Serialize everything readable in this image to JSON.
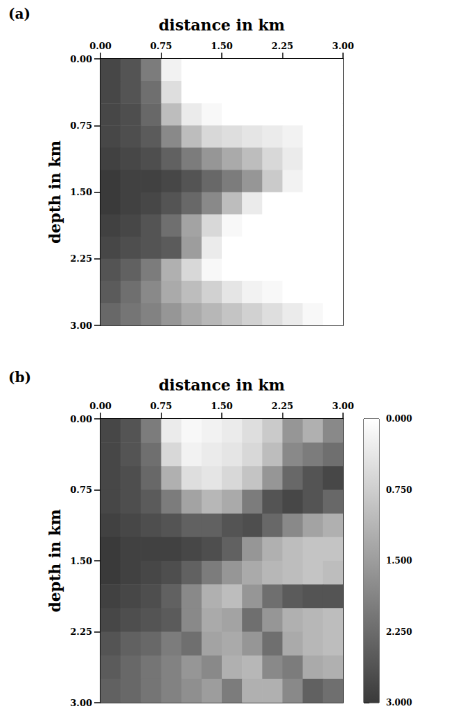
{
  "chart_data": [
    {
      "type": "heatmap",
      "label": "(a)",
      "x_label": "distance in km",
      "y_label": "depth in km",
      "xlim": [
        0,
        3
      ],
      "ylim": [
        0,
        3
      ],
      "xticks": [
        {
          "value": 0,
          "label": "0.00"
        },
        {
          "value": 0.75,
          "label": "0.75"
        },
        {
          "value": 1.5,
          "label": "1.50"
        },
        {
          "value": 2.25,
          "label": "2.25"
        },
        {
          "value": 3,
          "label": "3.00"
        }
      ],
      "yticks": [
        {
          "value": 0,
          "label": "0.00"
        },
        {
          "value": 0.75,
          "label": "0.75"
        },
        {
          "value": 1.5,
          "label": "1.50"
        },
        {
          "value": 2.25,
          "label": "2.25"
        },
        {
          "value": 3,
          "label": "3.00"
        }
      ],
      "z": [
        [
          2.8,
          2.6,
          2.0,
          0.2,
          0,
          0,
          0,
          0,
          0,
          0,
          0,
          0
        ],
        [
          2.8,
          2.6,
          2.2,
          0.5,
          0,
          0,
          0,
          0,
          0,
          0,
          0,
          0
        ],
        [
          2.8,
          2.7,
          2.3,
          1.0,
          0.3,
          0.1,
          0,
          0,
          0,
          0,
          0,
          0
        ],
        [
          2.8,
          2.7,
          2.5,
          1.8,
          1.0,
          0.6,
          0.5,
          0.4,
          0.3,
          0.2,
          0,
          0
        ],
        [
          2.9,
          2.8,
          2.7,
          2.4,
          2.0,
          1.6,
          1.3,
          1.0,
          0.6,
          0.3,
          0,
          0
        ],
        [
          3.0,
          2.9,
          2.9,
          2.8,
          2.6,
          2.3,
          2.0,
          1.6,
          0.8,
          0.2,
          0,
          0
        ],
        [
          3.0,
          2.9,
          2.8,
          2.6,
          2.3,
          1.8,
          1.0,
          0.3,
          0,
          0,
          0,
          0
        ],
        [
          2.9,
          2.8,
          2.6,
          2.2,
          1.4,
          0.6,
          0.1,
          0,
          0,
          0,
          0,
          0
        ],
        [
          2.8,
          2.7,
          2.6,
          2.5,
          1.5,
          0.3,
          0,
          0,
          0,
          0,
          0,
          0
        ],
        [
          2.6,
          2.4,
          2.0,
          1.2,
          0.6,
          0.1,
          0,
          0,
          0,
          0,
          0,
          0
        ],
        [
          2.5,
          2.2,
          1.8,
          1.3,
          1.0,
          0.7,
          0.4,
          0.2,
          0.1,
          0,
          0,
          0
        ],
        [
          2.3,
          2.1,
          1.9,
          1.6,
          1.3,
          1.1,
          0.9,
          0.7,
          0.5,
          0.3,
          0.1,
          0
        ]
      ]
    },
    {
      "type": "heatmap",
      "label": "(b)",
      "x_label": "distance in km",
      "y_label": "depth in km",
      "xlim": [
        0,
        3
      ],
      "ylim": [
        0,
        3
      ],
      "xticks": [
        {
          "value": 0,
          "label": "0.00"
        },
        {
          "value": 0.75,
          "label": "0.75"
        },
        {
          "value": 1.5,
          "label": "1.50"
        },
        {
          "value": 2.25,
          "label": "2.25"
        },
        {
          "value": 3,
          "label": "3.00"
        }
      ],
      "yticks": [
        {
          "value": 0,
          "label": "0.00"
        },
        {
          "value": 0.75,
          "label": "0.75"
        },
        {
          "value": 1.5,
          "label": "1.50"
        },
        {
          "value": 2.25,
          "label": "2.25"
        },
        {
          "value": 3,
          "label": "3.00"
        }
      ],
      "z": [
        [
          2.8,
          2.6,
          2.0,
          0.3,
          0.1,
          0.2,
          0.3,
          0.5,
          0.8,
          1.6,
          1.2,
          1.8
        ],
        [
          2.8,
          2.6,
          2.2,
          0.6,
          0.2,
          0.3,
          0.4,
          0.6,
          1.0,
          1.8,
          2.0,
          2.2
        ],
        [
          2.8,
          2.7,
          2.3,
          1.2,
          0.5,
          0.4,
          0.6,
          0.9,
          1.6,
          2.3,
          2.6,
          2.8
        ],
        [
          2.8,
          2.7,
          2.5,
          2.0,
          1.4,
          1.1,
          1.3,
          2.0,
          2.6,
          2.8,
          2.6,
          2.3
        ],
        [
          2.9,
          2.8,
          2.7,
          2.6,
          2.4,
          2.4,
          2.6,
          2.7,
          2.3,
          1.8,
          1.4,
          1.2
        ],
        [
          3.0,
          2.9,
          2.9,
          2.9,
          2.8,
          2.7,
          2.4,
          1.6,
          1.2,
          1.0,
          0.9,
          0.9
        ],
        [
          3.0,
          2.9,
          2.8,
          2.7,
          2.4,
          2.0,
          1.6,
          1.3,
          1.1,
          1.0,
          0.9,
          1.0
        ],
        [
          2.9,
          2.8,
          2.7,
          2.4,
          1.8,
          1.2,
          1.0,
          1.6,
          2.2,
          2.5,
          2.6,
          2.6
        ],
        [
          2.8,
          2.7,
          2.6,
          2.5,
          1.8,
          1.3,
          1.4,
          2.2,
          1.6,
          1.2,
          1.1,
          1.0
        ],
        [
          2.6,
          2.4,
          2.3,
          2.0,
          2.2,
          1.4,
          1.3,
          1.6,
          2.2,
          1.3,
          1.1,
          1.0
        ],
        [
          2.5,
          2.3,
          2.1,
          1.9,
          1.6,
          1.8,
          1.2,
          1.1,
          1.8,
          2.0,
          1.3,
          1.2
        ],
        [
          2.4,
          2.3,
          2.1,
          1.9,
          1.7,
          1.5,
          2.0,
          1.2,
          1.2,
          1.8,
          2.4,
          2.2
        ]
      ],
      "colorbar": {
        "range": [
          0,
          3
        ],
        "ticks": [
          {
            "value": 0,
            "label": "0.000"
          },
          {
            "value": 0.75,
            "label": "0.750"
          },
          {
            "value": 1.5,
            "label": "1.500"
          },
          {
            "value": 2.25,
            "label": "2.250"
          },
          {
            "value": 3,
            "label": "3.000"
          }
        ]
      }
    }
  ]
}
